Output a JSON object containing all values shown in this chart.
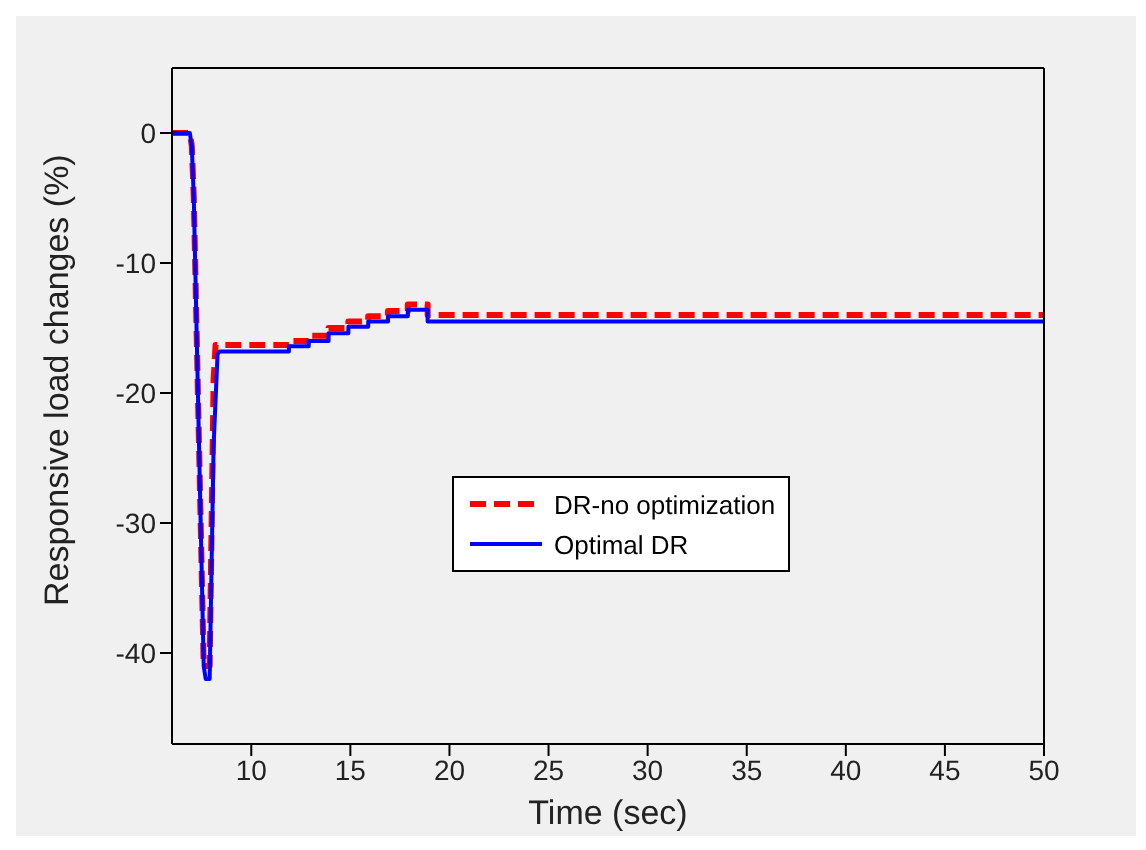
{
  "chart_data": {
    "type": "line",
    "xlabel": "Time (sec)",
    "ylabel": "Responsive load changes (%)",
    "xlim": [
      6,
      50
    ],
    "xticks": [
      10,
      15,
      20,
      25,
      30,
      35,
      40,
      45,
      50
    ],
    "ylim": [
      -47,
      5
    ],
    "yticks": [
      -40,
      -30,
      -20,
      -10,
      0
    ],
    "grid": false,
    "legend": "center",
    "marker": "none",
    "series": [
      {
        "name": "DR-no optimization",
        "color": "#ff0000",
        "line_style": "dashed",
        "x": [
          6,
          6.9,
          7.0,
          7.1,
          7.6,
          7.9,
          8.1,
          8.2,
          11.9,
          11.9,
          12.9,
          12.9,
          13.9,
          13.9,
          14.9,
          14.9,
          15.9,
          15.9,
          16.9,
          16.9,
          17.9,
          17.9,
          18.9,
          18.9,
          50
        ],
        "values": [
          0,
          0,
          -1,
          -5,
          -41,
          -41,
          -19,
          -16.3,
          -16.3,
          -16.0,
          -16.0,
          -15.6,
          -15.6,
          -15.0,
          -15.0,
          -14.5,
          -14.5,
          -14.1,
          -14.1,
          -13.7,
          -13.7,
          -13.2,
          -13.2,
          -14.0,
          -14.0
        ]
      },
      {
        "name": "Optimal DR",
        "color": "#0000ff",
        "line_style": "solid",
        "x": [
          6,
          6.9,
          7.0,
          7.1,
          7.6,
          7.7,
          7.9,
          8.1,
          8.3,
          8.4,
          11.9,
          11.9,
          12.9,
          12.9,
          13.9,
          13.9,
          14.9,
          14.9,
          15.9,
          15.9,
          16.9,
          16.9,
          17.9,
          17.9,
          18.9,
          18.9,
          50
        ],
        "values": [
          0,
          0,
          -1,
          -5,
          -41,
          -42,
          -42,
          -24,
          -17,
          -16.8,
          -16.8,
          -16.4,
          -16.4,
          -16.0,
          -16.0,
          -15.4,
          -15.4,
          -14.9,
          -14.9,
          -14.5,
          -14.5,
          -14.1,
          -14.1,
          -13.6,
          -13.6,
          -14.5,
          -14.5
        ]
      }
    ]
  }
}
